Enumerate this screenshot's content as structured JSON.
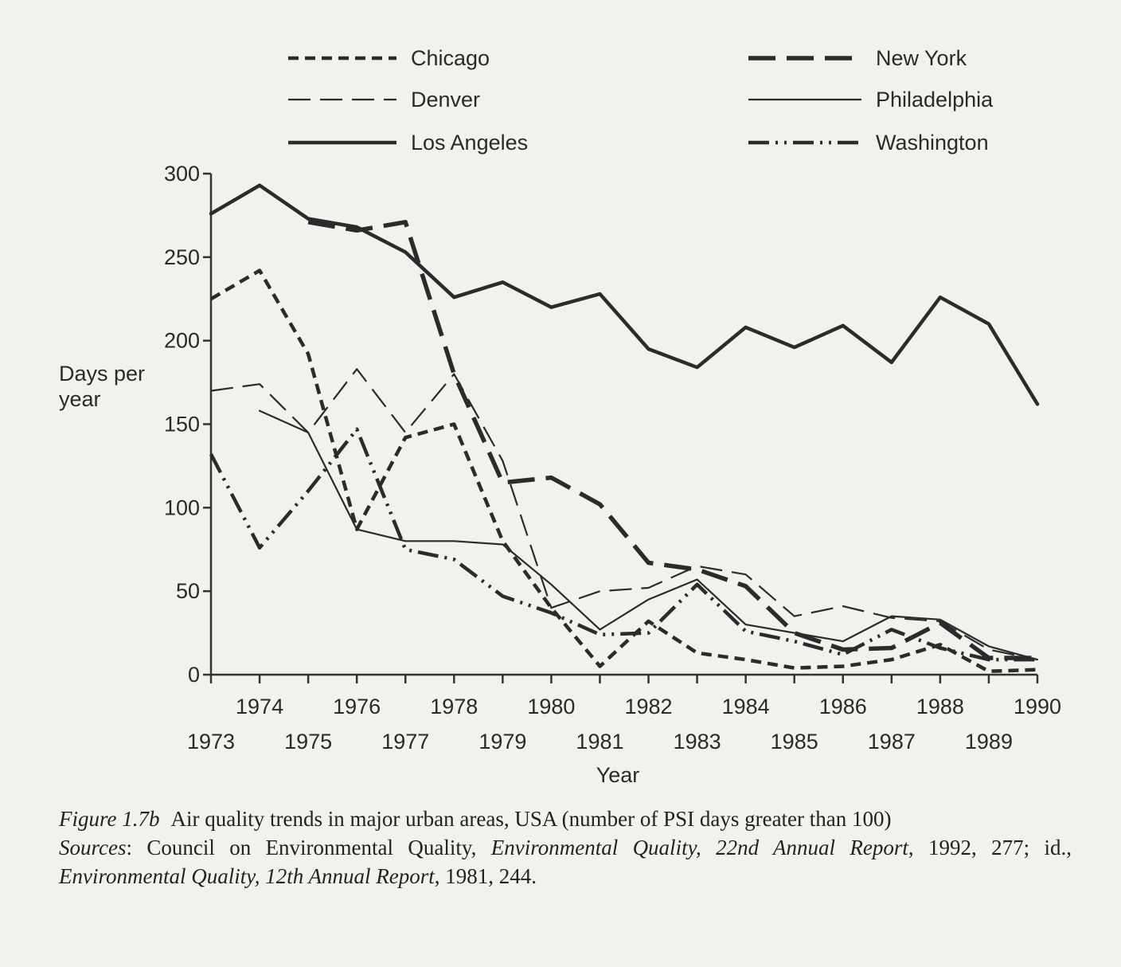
{
  "chart_data": {
    "type": "line",
    "ylabel": "Days per year",
    "xlabel": "Year",
    "ylim": [
      0,
      300
    ],
    "xlim": [
      1973,
      1990
    ],
    "yticks": [
      0,
      50,
      100,
      150,
      200,
      250,
      300
    ],
    "x": [
      1973,
      1974,
      1975,
      1976,
      1977,
      1978,
      1979,
      1980,
      1981,
      1982,
      1983,
      1984,
      1985,
      1986,
      1987,
      1988,
      1989,
      1990
    ],
    "xticks_top": [
      "1974",
      "1976",
      "1978",
      "1980",
      "1982",
      "1984",
      "1986",
      "1988",
      "1990"
    ],
    "xticks_bottom": [
      "1973",
      "1975",
      "1977",
      "1979",
      "1981",
      "1983",
      "1985",
      "1987",
      "1989"
    ],
    "grid": false,
    "legend_position": "top",
    "series": [
      {
        "name": "Chicago",
        "style": "short-dash",
        "values": [
          225,
          242,
          192,
          87,
          142,
          150,
          80,
          40,
          5,
          32,
          13,
          9,
          4,
          5,
          9,
          18,
          2,
          3
        ]
      },
      {
        "name": "Denver",
        "style": "long-dash-thin",
        "values": [
          170,
          174,
          145,
          183,
          145,
          180,
          128,
          40,
          50,
          52,
          65,
          60,
          35,
          41,
          34,
          32,
          15,
          9
        ]
      },
      {
        "name": "Los Angeles",
        "style": "solid-thick",
        "values": [
          276,
          293,
          273,
          268,
          253,
          226,
          235,
          220,
          228,
          195,
          184,
          208,
          196,
          209,
          187,
          226,
          210,
          162
        ]
      },
      {
        "name": "New York",
        "style": "long-dash-thick",
        "values": [
          null,
          null,
          271,
          266,
          271,
          180,
          115,
          118,
          102,
          67,
          63,
          53,
          25,
          15,
          16,
          31,
          10,
          10
        ]
      },
      {
        "name": "Philadelphia",
        "style": "solid-thin",
        "values": [
          null,
          158,
          145,
          87,
          80,
          80,
          78,
          54,
          27,
          45,
          57,
          30,
          25,
          20,
          35,
          33,
          17,
          9
        ]
      },
      {
        "name": "Washington",
        "style": "dash-dot-dot",
        "values": [
          132,
          76,
          110,
          147,
          75,
          69,
          47,
          37,
          24,
          25,
          54,
          26,
          20,
          12,
          27,
          16,
          9,
          9
        ]
      }
    ]
  },
  "caption": {
    "figure_label": "Figure 1.7b",
    "text": "Air quality trends in major urban areas, USA (number of PSI days greater than 100)",
    "sources_label": "Sources",
    "sources_part1": ": Council on Environmental Quality, ",
    "sources_title1": "Environmental Quality, 22nd Annual Report",
    "sources_part2": ", 1992, 277; id., ",
    "sources_title2": "Environmental Quality, 12th Annual Report",
    "sources_part3": ", 1981, 244."
  }
}
